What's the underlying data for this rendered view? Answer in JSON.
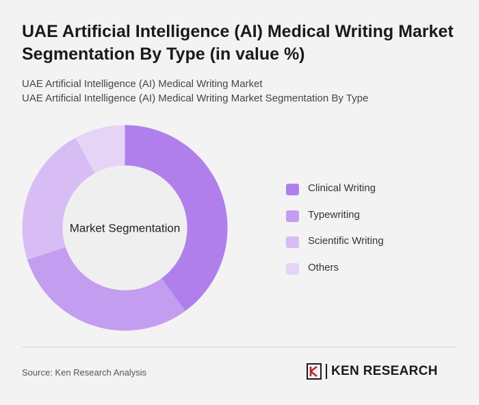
{
  "header": {
    "title": "UAE Artificial Intelligence (AI) Medical Writing Market Segmentation By Type (in value %)",
    "subtitle_line1": "UAE Artificial Intelligence (AI) Medical Writing Market",
    "subtitle_line2": "UAE Artificial Intelligence (AI) Medical Writing Market Segmentation By Type"
  },
  "chart_data": {
    "type": "pie",
    "variant": "donut",
    "center_label": "Market Segmentation",
    "categories": [
      "Clinical Writing",
      "Typewriting",
      "Scientific Writing",
      "Others"
    ],
    "values": [
      40,
      30,
      22,
      8
    ],
    "unit": "%",
    "colors": [
      "#b07fec",
      "#c39df0",
      "#d7bdf4",
      "#e6d4f7"
    ],
    "hole_color": "#efefef",
    "legend_position": "right"
  },
  "footer": {
    "source": "Source: Ken Research Analysis",
    "logo_text": "KEN RESEARCH",
    "logo_mark": "K"
  }
}
